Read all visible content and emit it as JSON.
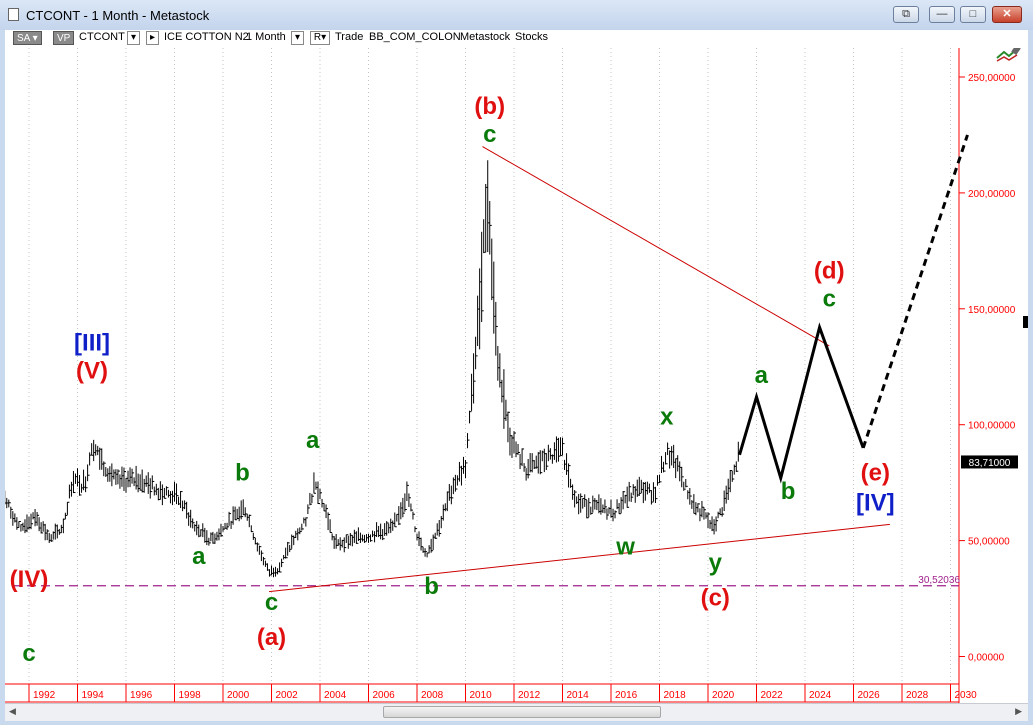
{
  "window": {
    "title": "CTCONT - 1 Month - Metastock",
    "buttons": [
      "⧉",
      "—",
      "□",
      "✕"
    ]
  },
  "toolbar": {
    "sa_label": "SA",
    "vp_label": "VP",
    "symbol": "CTCONT",
    "instrument_name": "ICE COTTON N2",
    "interval": "1 Month",
    "mode_label": "R",
    "trade_label": "Trade",
    "source": "BB_COM_COLON",
    "app": "Metastock",
    "asset_class": "Stocks"
  },
  "colors": {
    "axis_red": "#ff0000",
    "trendline": "#cc0000",
    "wave_green": "#0a7a0a",
    "wave_red": "#e01010",
    "wave_blue": "#1020c8",
    "price_bars": "#000000",
    "support_dash": "#a0208c"
  },
  "chart_data": {
    "type": "line",
    "subtype": "monthly high-low price bars with Elliott wave annotations",
    "x_axis": {
      "type": "year",
      "range": [
        1991,
        2031
      ],
      "tick_labels": [
        "1992",
        "1994",
        "1996",
        "1998",
        "2000",
        "2002",
        "2004",
        "2006",
        "2008",
        "2010",
        "2012",
        "2014",
        "2016",
        "2018",
        "2020",
        "2022",
        "2024",
        "2026",
        "2028",
        "2030"
      ]
    },
    "y_axis": {
      "position": "right",
      "range": [
        -4,
        253
      ],
      "tick_labels": [
        "0,00000",
        "50,00000",
        "100,00000",
        "150,00000",
        "200,00000",
        "250,00000"
      ],
      "tick_values": [
        0,
        50,
        100,
        150,
        200,
        250
      ]
    },
    "grid": "dotted vertical",
    "price_anchors": [
      {
        "x": 1991.0,
        "y": 68
      },
      {
        "x": 1991.6,
        "y": 55
      },
      {
        "x": 1992.3,
        "y": 60
      },
      {
        "x": 1992.9,
        "y": 50
      },
      {
        "x": 1993.4,
        "y": 56
      },
      {
        "x": 1993.8,
        "y": 76
      },
      {
        "x": 1994.3,
        "y": 74
      },
      {
        "x": 1994.6,
        "y": 92
      },
      {
        "x": 1995.0,
        "y": 84
      },
      {
        "x": 1995.6,
        "y": 75
      },
      {
        "x": 1996.5,
        "y": 76
      },
      {
        "x": 1997.5,
        "y": 71
      },
      {
        "x": 1998.2,
        "y": 68
      },
      {
        "x": 1998.8,
        "y": 56
      },
      {
        "x": 1999.5,
        "y": 50
      },
      {
        "x": 2000.3,
        "y": 58
      },
      {
        "x": 2000.9,
        "y": 64
      },
      {
        "x": 2001.4,
        "y": 48
      },
      {
        "x": 2001.9,
        "y": 36
      },
      {
        "x": 2002.3,
        "y": 38
      },
      {
        "x": 2002.9,
        "y": 50
      },
      {
        "x": 2003.4,
        "y": 58
      },
      {
        "x": 2003.8,
        "y": 76
      },
      {
        "x": 2004.3,
        "y": 60
      },
      {
        "x": 2004.6,
        "y": 48
      },
      {
        "x": 2005.2,
        "y": 50
      },
      {
        "x": 2006.0,
        "y": 52
      },
      {
        "x": 2007.0,
        "y": 55
      },
      {
        "x": 2007.6,
        "y": 70
      },
      {
        "x": 2008.0,
        "y": 52
      },
      {
        "x": 2008.4,
        "y": 44
      },
      {
        "x": 2009.0,
        "y": 58
      },
      {
        "x": 2009.5,
        "y": 74
      },
      {
        "x": 2010.0,
        "y": 82
      },
      {
        "x": 2010.5,
        "y": 140
      },
      {
        "x": 2010.9,
        "y": 200
      },
      {
        "x": 2011.3,
        "y": 130
      },
      {
        "x": 2011.8,
        "y": 95
      },
      {
        "x": 2012.5,
        "y": 80
      },
      {
        "x": 2013.3,
        "y": 85
      },
      {
        "x": 2014.0,
        "y": 88
      },
      {
        "x": 2014.6,
        "y": 66
      },
      {
        "x": 2015.4,
        "y": 64
      },
      {
        "x": 2016.1,
        "y": 62
      },
      {
        "x": 2016.6,
        "y": 68
      },
      {
        "x": 2017.2,
        "y": 72
      },
      {
        "x": 2017.8,
        "y": 70
      },
      {
        "x": 2018.3,
        "y": 88
      },
      {
        "x": 2018.8,
        "y": 80
      },
      {
        "x": 2019.4,
        "y": 65
      },
      {
        "x": 2019.9,
        "y": 60
      },
      {
        "x": 2020.2,
        "y": 55
      },
      {
        "x": 2020.6,
        "y": 64
      },
      {
        "x": 2021.1,
        "y": 80
      },
      {
        "x": 2021.3,
        "y": 88
      }
    ],
    "projection": [
      {
        "x": 2021.3,
        "y": 87
      },
      {
        "x": 2022.0,
        "y": 112
      },
      {
        "x": 2023.0,
        "y": 77
      },
      {
        "x": 2024.6,
        "y": 142
      },
      {
        "x": 2026.4,
        "y": 90
      }
    ],
    "projection_extension": [
      {
        "x": 2026.4,
        "y": 90
      },
      {
        "x": 2030.7,
        "y": 225
      }
    ],
    "trendlines": [
      {
        "from": {
          "x": 2010.7,
          "y": 220
        },
        "to": {
          "x": 2025.0,
          "y": 134
        }
      },
      {
        "from": {
          "x": 2001.9,
          "y": 28
        },
        "to": {
          "x": 2027.5,
          "y": 57
        }
      }
    ],
    "support_level": {
      "y": 30.52036,
      "label": "30,52036"
    },
    "last_price": {
      "y": 83.71,
      "label": "83,71000"
    },
    "wave_labels": [
      {
        "text": "c",
        "x": 1992.0,
        "y": -2,
        "dy": 0,
        "color": "green"
      },
      {
        "text": "(IV)",
        "x": 1992.0,
        "y": 30,
        "dy": 0,
        "color": "red"
      },
      {
        "text": "[III]",
        "x": 1994.6,
        "y": 132,
        "dy": 0,
        "color": "blue"
      },
      {
        "text": "(V)",
        "x": 1994.6,
        "y": 120,
        "dy": 0,
        "color": "red"
      },
      {
        "text": "b",
        "x": 2000.8,
        "y": 76,
        "dy": 0,
        "color": "green"
      },
      {
        "text": "a",
        "x": 1999.0,
        "y": 40,
        "dy": 0,
        "color": "green"
      },
      {
        "text": "c",
        "x": 2002.0,
        "y": 20,
        "dy": 0,
        "color": "green"
      },
      {
        "text": "(a)",
        "x": 2002.0,
        "y": 5,
        "dy": 0,
        "color": "red"
      },
      {
        "text": "a",
        "x": 2003.7,
        "y": 90,
        "dy": 0,
        "color": "green"
      },
      {
        "text": "b",
        "x": 2008.6,
        "y": 27,
        "dy": 0,
        "color": "green"
      },
      {
        "text": "(b)",
        "x": 2011.0,
        "y": 234,
        "dy": 0,
        "color": "red"
      },
      {
        "text": "c",
        "x": 2011.0,
        "y": 222,
        "dy": 0,
        "color": "green"
      },
      {
        "text": "w",
        "x": 2016.6,
        "y": 44,
        "dy": 0,
        "color": "green"
      },
      {
        "text": "x",
        "x": 2018.3,
        "y": 100,
        "dy": 0,
        "color": "green"
      },
      {
        "text": "y",
        "x": 2020.3,
        "y": 37,
        "dy": 0,
        "color": "green"
      },
      {
        "text": "(c)",
        "x": 2020.3,
        "y": 22,
        "dy": 0,
        "color": "red"
      },
      {
        "text": "a",
        "x": 2022.2,
        "y": 118,
        "dy": 0,
        "color": "green"
      },
      {
        "text": "b",
        "x": 2023.3,
        "y": 68,
        "dy": 0,
        "color": "green"
      },
      {
        "text": "(d)",
        "x": 2025.0,
        "y": 163,
        "dy": 0,
        "color": "red"
      },
      {
        "text": "c",
        "x": 2025.0,
        "y": 151,
        "dy": 0,
        "color": "green"
      },
      {
        "text": "(e)",
        "x": 2026.9,
        "y": 76,
        "dy": 0,
        "color": "red"
      },
      {
        "text": "[IV]",
        "x": 2026.9,
        "y": 63,
        "dy": 0,
        "color": "blue"
      }
    ]
  }
}
